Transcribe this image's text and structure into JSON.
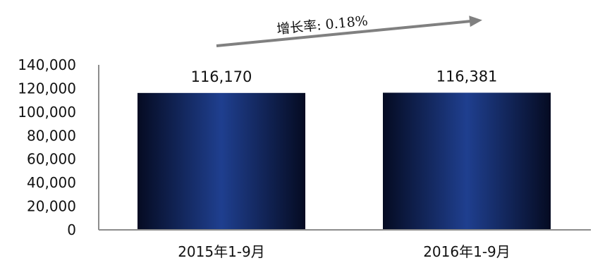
{
  "chart_data": {
    "type": "bar",
    "categories": [
      "2015年1-9月",
      "2016年1-9月"
    ],
    "values": [
      116170,
      116381
    ],
    "data_labels": [
      "116,170",
      "116,381"
    ],
    "title": "",
    "xlabel": "",
    "ylabel": "",
    "ylim": [
      0,
      140000
    ],
    "yticks": [
      0,
      20000,
      40000,
      60000,
      80000,
      100000,
      120000,
      140000
    ],
    "ytick_labels": [
      "0",
      "20,000",
      "40,000",
      "60,000",
      "80,000",
      "100,000",
      "120,000",
      "140,000"
    ],
    "grid": false,
    "legend": "none",
    "annotation": {
      "text": "增长率: 0.18%",
      "shape": "rising-arrow"
    },
    "colors": {
      "bar_center": "#1f3f8f",
      "bar_edge": "#050b22",
      "axis": "#8c8c8c",
      "arrow": "#808080"
    }
  }
}
